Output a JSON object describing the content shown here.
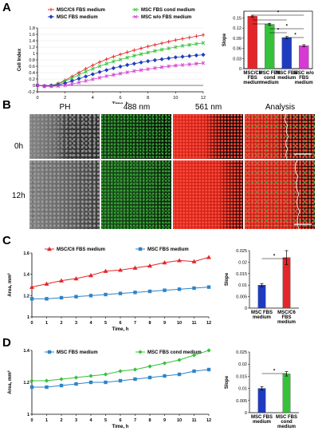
{
  "panels": {
    "A": "A",
    "B": "B",
    "C": "C",
    "D": "D"
  },
  "panelB": {
    "columns": [
      "PH",
      "488 nm",
      "561 nm",
      "Analysis"
    ],
    "rows": [
      "0h",
      "12h"
    ]
  },
  "colors": {
    "red": "#e3262a",
    "green": "#35c23a",
    "blue": "#1f3cbf",
    "magenta": "#d63ad2",
    "cblue": "#2f83c9"
  },
  "chart_data": [
    {
      "id": "A-left",
      "type": "line",
      "ylabel": "Cell Index",
      "xlabel": "Time, h",
      "xlim": [
        0,
        12
      ],
      "ylim": [
        -0.2,
        1.8
      ],
      "xticks": [
        "0",
        "2",
        "4",
        "6",
        "8",
        "10",
        "12"
      ],
      "yticks": [
        "-0.2",
        "0",
        "0.2",
        "0.4",
        "0.6",
        "0.8",
        "1",
        "1.2",
        "1.4",
        "1.6",
        "1.8"
      ],
      "legend": [
        "MSC/C6 FBS medium",
        "MSC FBS cond medium",
        "MSC FBS medium",
        "MSC w/o FBS medium"
      ],
      "x": [
        0,
        0.5,
        1,
        1.5,
        2,
        2.5,
        3,
        3.5,
        4,
        4.5,
        5,
        5.5,
        6,
        6.5,
        7,
        7.5,
        8,
        8.5,
        9,
        9.5,
        10,
        10.5,
        11,
        11.5,
        12
      ],
      "series": [
        {
          "name": "MSC/C6 FBS medium",
          "values": [
            0,
            -0.02,
            0,
            0.06,
            0.16,
            0.28,
            0.4,
            0.52,
            0.63,
            0.73,
            0.82,
            0.9,
            0.97,
            1.04,
            1.1,
            1.16,
            1.22,
            1.27,
            1.32,
            1.37,
            1.42,
            1.46,
            1.5,
            1.54,
            1.58
          ]
        },
        {
          "name": "MSC FBS cond medium",
          "values": [
            0,
            -0.02,
            0,
            0.05,
            0.13,
            0.23,
            0.33,
            0.43,
            0.52,
            0.6,
            0.68,
            0.75,
            0.81,
            0.87,
            0.93,
            0.98,
            1.03,
            1.08,
            1.12,
            1.16,
            1.2,
            1.24,
            1.27,
            1.3,
            1.33
          ]
        },
        {
          "name": "MSC FBS medium",
          "values": [
            0,
            -0.02,
            -0.01,
            0.02,
            0.07,
            0.14,
            0.21,
            0.28,
            0.35,
            0.42,
            0.48,
            0.54,
            0.59,
            0.64,
            0.68,
            0.72,
            0.76,
            0.79,
            0.82,
            0.85,
            0.88,
            0.9,
            0.92,
            0.94,
            0.96
          ]
        },
        {
          "name": "MSC w/o FBS medium",
          "values": [
            0,
            -0.03,
            -0.03,
            -0.02,
            0,
            0.04,
            0.09,
            0.14,
            0.19,
            0.24,
            0.29,
            0.33,
            0.37,
            0.41,
            0.45,
            0.48,
            0.51,
            0.54,
            0.57,
            0.6,
            0.62,
            0.64,
            0.66,
            0.68,
            0.7
          ]
        }
      ]
    },
    {
      "id": "A-right",
      "type": "bar",
      "ylabel": "Slope",
      "ylim": [
        0,
        0.17
      ],
      "yticks": [
        "0",
        "0.03",
        "0.06",
        "0.09",
        "0.12",
        "0.15"
      ],
      "categories": [
        "MSC/C6 FBS medium",
        "MSC FBS cond medium",
        "MSC FBS medium",
        "MSC w/o FBS medium"
      ],
      "category_lines": [
        [
          "MSC/C6",
          "FBS",
          "medium"
        ],
        [
          "MSC FBS",
          "cond",
          "medium"
        ],
        [
          "MSC FBS",
          "medium"
        ],
        [
          "MSC w/o",
          "FBS",
          "medium"
        ]
      ],
      "values": [
        0.155,
        0.131,
        0.092,
        0.068
      ],
      "significance": "*"
    },
    {
      "id": "C-left",
      "type": "line",
      "ylabel": "Area, mm²",
      "xlabel": "Time, h",
      "xlim": [
        0,
        12
      ],
      "ylim": [
        1.0,
        1.6
      ],
      "xticks": [
        "0",
        "1",
        "2",
        "3",
        "4",
        "5",
        "6",
        "7",
        "8",
        "9",
        "10",
        "11",
        "12"
      ],
      "yticks": [
        "1",
        "1.2",
        "1.4",
        "1.6"
      ],
      "legend": [
        "MSC/C6 FBS medium",
        "MSC FBS medium"
      ],
      "x": [
        0,
        1,
        2,
        3,
        4,
        5,
        6,
        7,
        8,
        9,
        10,
        11,
        12
      ],
      "series": [
        {
          "name": "MSC/C6 FBS medium",
          "values": [
            1.28,
            1.31,
            1.34,
            1.36,
            1.39,
            1.43,
            1.44,
            1.46,
            1.48,
            1.51,
            1.53,
            1.52,
            1.56
          ]
        },
        {
          "name": "MSC FBS medium",
          "values": [
            1.17,
            1.17,
            1.18,
            1.19,
            1.2,
            1.21,
            1.22,
            1.23,
            1.24,
            1.25,
            1.26,
            1.27,
            1.28
          ]
        }
      ]
    },
    {
      "id": "C-right",
      "type": "bar",
      "ylabel": "Slope",
      "ylim": [
        0,
        0.025
      ],
      "yticks": [
        "0",
        "0.005",
        "0.01",
        "0.015",
        "0.02",
        "0.025"
      ],
      "categories": [
        "MSC FBS medium",
        "MSC/C6 FBS medium"
      ],
      "category_lines": [
        [
          "MSC FBS",
          "medium"
        ],
        [
          "MSC/C6",
          "FBS",
          "medium"
        ]
      ],
      "values": [
        0.01,
        0.022
      ],
      "errors": [
        0.0007,
        0.003
      ],
      "significance": "*"
    },
    {
      "id": "D-left",
      "type": "line",
      "ylabel": "Area, mm²",
      "xlabel": "Time, h",
      "xlim": [
        0,
        12
      ],
      "ylim": [
        1.0,
        1.4
      ],
      "xticks": [
        "0",
        "1",
        "2",
        "3",
        "4",
        "5",
        "6",
        "7",
        "8",
        "9",
        "10",
        "11",
        "12"
      ],
      "yticks": [
        "1",
        "1.2",
        "1.4"
      ],
      "legend": [
        "MSC FBS medium",
        "MSC FBS cond medium"
      ],
      "x": [
        0,
        1,
        2,
        3,
        4,
        5,
        6,
        7,
        8,
        9,
        10,
        11,
        12
      ],
      "series": [
        {
          "name": "MSC FBS medium",
          "values": [
            1.17,
            1.17,
            1.18,
            1.19,
            1.2,
            1.2,
            1.21,
            1.22,
            1.23,
            1.24,
            1.25,
            1.27,
            1.28
          ]
        },
        {
          "name": "MSC FBS cond medium",
          "values": [
            1.21,
            1.21,
            1.22,
            1.23,
            1.24,
            1.25,
            1.27,
            1.28,
            1.3,
            1.32,
            1.34,
            1.37,
            1.4
          ]
        }
      ]
    },
    {
      "id": "D-right",
      "type": "bar",
      "ylabel": "Slope",
      "ylim": [
        0,
        0.025
      ],
      "yticks": [
        "0",
        "0.005",
        "0.01",
        "0.015",
        "0.02",
        "0.025"
      ],
      "categories": [
        "MSC FBS medium",
        "MSC FBS cond medium"
      ],
      "category_lines": [
        [
          "MSC FBS",
          "medium"
        ],
        [
          "MSC FBS",
          "cond",
          "medium"
        ]
      ],
      "values": [
        0.01,
        0.016
      ],
      "errors": [
        0.0007,
        0.0009
      ],
      "significance": "*"
    }
  ]
}
